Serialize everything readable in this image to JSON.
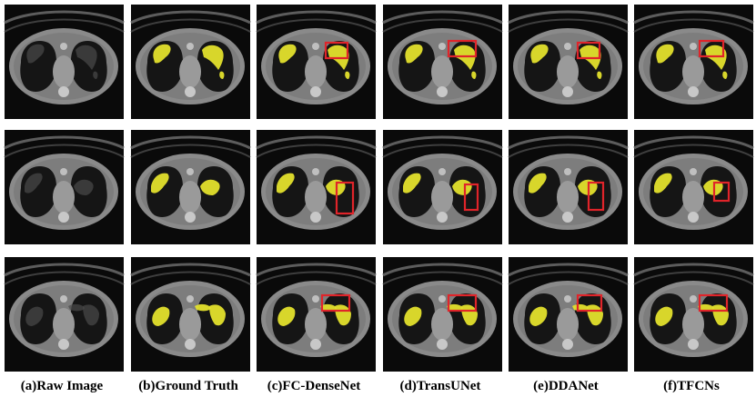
{
  "figure": {
    "columns": [
      {
        "id": "raw",
        "caption": "(a)Raw Image"
      },
      {
        "id": "gt",
        "caption": "(b)Ground Truth"
      },
      {
        "id": "fc",
        "caption": "(c)FC-DenseNet"
      },
      {
        "id": "transunet",
        "caption": "(d)TransUNet"
      },
      {
        "id": "ddanet",
        "caption": "(e)DDANet"
      },
      {
        "id": "tfcns",
        "caption": "(f)TFCNs"
      }
    ],
    "rows": 3,
    "colors": {
      "background": "#0a0a0a",
      "lesion": "#e3e02c",
      "highlight_box": "#e0242a",
      "tissue": "#7d7d7d",
      "lung": "#151515"
    }
  }
}
